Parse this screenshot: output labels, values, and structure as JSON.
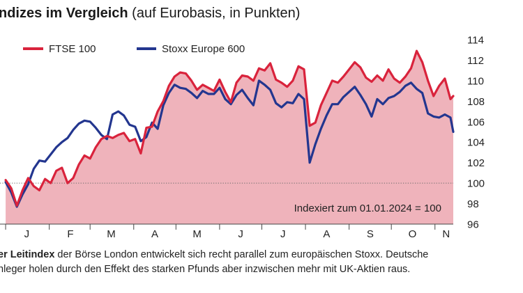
{
  "title": {
    "bold": "ndizes im Vergleich",
    "normal": " (auf Eurobasis, in Punkten)"
  },
  "chart_data": {
    "type": "area",
    "title": "ndizes im Vergleich (auf Eurobasis, in Punkten)",
    "xlabel": "",
    "ylabel": "",
    "x_tick_labels": [
      "J",
      "F",
      "M",
      "A",
      "M",
      "J",
      "J",
      "A",
      "S",
      "O",
      "N"
    ],
    "y_ticks": [
      96,
      98,
      100,
      102,
      104,
      106,
      108,
      110,
      112,
      114
    ],
    "ylim": [
      96,
      114
    ],
    "reference_line": 100,
    "annotation": "Indexiert zum 01.01.2024 = 100",
    "legend_position": "top-left",
    "grid": false,
    "colors": {
      "ftse_line": "#d9233c",
      "ftse_area": "#efb3bb",
      "stoxx_line": "#23368f",
      "reference": "#666666"
    },
    "x": [
      "2024-01-01",
      "2024-01-05",
      "2024-01-09",
      "2024-01-13",
      "2024-01-17",
      "2024-01-21",
      "2024-01-25",
      "2024-01-29",
      "2024-02-02",
      "2024-02-06",
      "2024-02-10",
      "2024-02-14",
      "2024-02-18",
      "2024-02-22",
      "2024-02-26",
      "2024-03-01",
      "2024-03-05",
      "2024-03-09",
      "2024-03-13",
      "2024-03-17",
      "2024-03-21",
      "2024-03-25",
      "2024-03-29",
      "2024-04-02",
      "2024-04-06",
      "2024-04-10",
      "2024-04-14",
      "2024-04-18",
      "2024-04-22",
      "2024-04-26",
      "2024-04-30",
      "2024-05-04",
      "2024-05-08",
      "2024-05-12",
      "2024-05-16",
      "2024-05-20",
      "2024-05-24",
      "2024-05-28",
      "2024-06-01",
      "2024-06-05",
      "2024-06-09",
      "2024-06-13",
      "2024-06-17",
      "2024-06-21",
      "2024-06-25",
      "2024-06-29",
      "2024-07-03",
      "2024-07-07",
      "2024-07-11",
      "2024-07-15",
      "2024-07-19",
      "2024-07-23",
      "2024-07-27",
      "2024-07-31",
      "2024-08-04",
      "2024-08-08",
      "2024-08-12",
      "2024-08-16",
      "2024-08-20",
      "2024-08-24",
      "2024-08-28",
      "2024-09-01",
      "2024-09-05",
      "2024-09-09",
      "2024-09-13",
      "2024-09-17",
      "2024-09-21",
      "2024-09-25",
      "2024-09-29",
      "2024-10-03",
      "2024-10-07",
      "2024-10-11",
      "2024-10-15",
      "2024-10-19",
      "2024-10-23",
      "2024-10-27",
      "2024-10-31",
      "2024-11-04",
      "2024-11-08",
      "2024-11-12",
      "2024-11-14"
    ],
    "series": [
      {
        "name": "FTSE 100",
        "values": [
          100.3,
          99.5,
          97.8,
          99.3,
          100.5,
          99.7,
          99.3,
          100.4,
          100.0,
          101.2,
          101.5,
          100.0,
          100.5,
          101.8,
          102.7,
          102.4,
          103.5,
          104.3,
          104.6,
          104.4,
          104.7,
          104.9,
          104.1,
          104.3,
          102.9,
          105.4,
          105.5,
          107.0,
          108.0,
          109.5,
          110.4,
          110.8,
          110.7,
          110.0,
          109.1,
          109.6,
          109.3,
          109.0,
          110.1,
          108.9,
          107.9,
          109.8,
          110.5,
          110.4,
          110.0,
          111.2,
          111.0,
          111.7,
          110.1,
          109.8,
          109.4,
          110.0,
          111.4,
          111.1,
          105.6,
          105.9,
          107.6,
          108.8,
          110.0,
          109.8,
          110.4,
          111.1,
          111.8,
          111.3,
          110.3,
          109.9,
          110.5,
          110.0,
          111.1,
          110.2,
          109.8,
          110.4,
          111.2,
          112.9,
          111.8,
          110.0,
          108.5,
          109.5,
          110.2,
          108.2,
          108.5
        ]
      },
      {
        "name": "Stoxx Europe 600",
        "values": [
          100.1,
          99.1,
          97.7,
          98.9,
          99.9,
          101.4,
          102.2,
          102.1,
          102.8,
          103.5,
          104.0,
          104.4,
          105.2,
          105.8,
          106.1,
          106.0,
          105.4,
          104.7,
          104.3,
          106.7,
          107.0,
          106.6,
          105.7,
          105.5,
          104.1,
          104.5,
          105.9,
          105.3,
          107.6,
          108.8,
          109.6,
          109.3,
          109.2,
          108.8,
          108.3,
          109.0,
          108.7,
          108.7,
          109.3,
          108.2,
          107.7,
          108.6,
          109.1,
          108.3,
          107.6,
          110.0,
          109.6,
          109.1,
          107.8,
          107.4,
          107.9,
          107.8,
          108.7,
          108.2,
          102.0,
          103.8,
          105.3,
          106.6,
          107.7,
          107.7,
          108.4,
          108.9,
          109.4,
          108.6,
          107.7,
          106.5,
          108.2,
          107.7,
          108.3,
          108.5,
          108.9,
          109.5,
          109.8,
          109.2,
          108.8,
          106.8,
          106.5,
          106.4,
          106.7,
          106.4,
          105.0
        ]
      }
    ]
  },
  "caption": {
    "line1_bold": "er Leitindex",
    "line1": " der Börse London entwickelt sich recht parallel zum europäischen Stoxx. Deutsche",
    "line2": "nleger holen durch den Effekt des starken Pfunds aber inzwischen mehr mit UK-Aktien raus."
  }
}
